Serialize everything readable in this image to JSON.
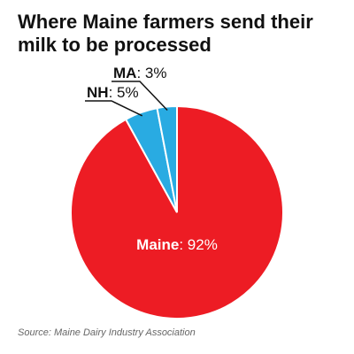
{
  "title": "Where Maine farmers send their milk to be processed",
  "source": "Source: Maine Dairy Industry Association",
  "colors": {
    "slice_main": "#ED1C24",
    "slice_minor": "#29ABE2",
    "stroke": "#ffffff",
    "leader": "#111111"
  },
  "chart_data": {
    "type": "pie",
    "title": "Where Maine farmers send their milk to be processed",
    "slices": [
      {
        "label": "Maine",
        "value": 92,
        "display": ": 92%"
      },
      {
        "label": "NH",
        "value": 5,
        "display": ": 5%"
      },
      {
        "label": "MA",
        "value": 3,
        "display": ": 3%"
      }
    ]
  }
}
